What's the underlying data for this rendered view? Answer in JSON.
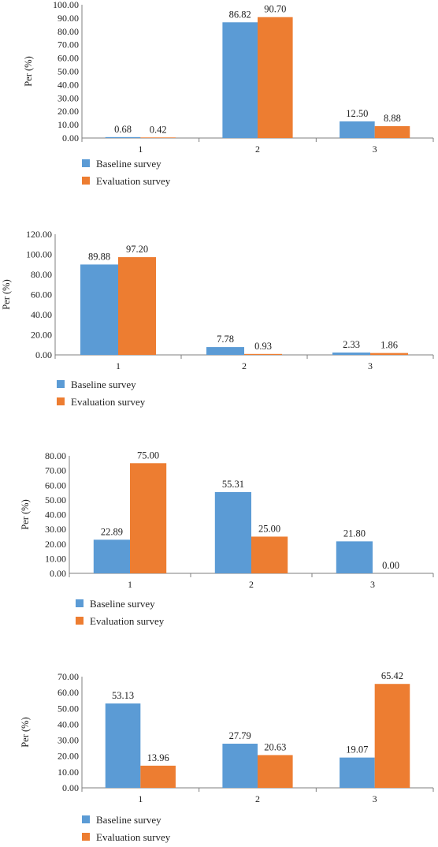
{
  "colors": {
    "baseline": "#5b9bd5",
    "evaluation": "#ed7d31",
    "axis": "#7f7f7f"
  },
  "chart_data": [
    {
      "type": "bar",
      "categories": [
        "1",
        "2",
        "3"
      ],
      "ylabel": "Per (%)",
      "ylim": [
        0,
        100
      ],
      "yticks": [
        "0.00",
        "10.00",
        "20.00",
        "30.00",
        "40.00",
        "50.00",
        "60.00",
        "70.00",
        "80.00",
        "90.00",
        "100.00"
      ],
      "legend_placement": "bottom-left",
      "series": [
        {
          "name": "Baseline survey",
          "values": [
            0.68,
            86.82,
            12.5
          ],
          "labels": [
            "0.68",
            "86.82",
            "12.50"
          ]
        },
        {
          "name": "Evaluation survey",
          "values": [
            0.42,
            90.7,
            8.88
          ],
          "labels": [
            "0.42",
            "90.70",
            "8.88"
          ]
        }
      ]
    },
    {
      "type": "bar",
      "categories": [
        "1",
        "2",
        "3"
      ],
      "ylabel": "Per (%)",
      "ylim": [
        0,
        120
      ],
      "yticks": [
        "0.00",
        "20.00",
        "40.00",
        "60.00",
        "80.00",
        "100.00",
        "120.00"
      ],
      "legend_placement": "bottom-left",
      "series": [
        {
          "name": "Baseline survey",
          "values": [
            89.88,
            7.78,
            2.33
          ],
          "labels": [
            "89.88",
            "7.78",
            "2.33"
          ]
        },
        {
          "name": "Evaluation survey",
          "values": [
            97.2,
            0.93,
            1.86
          ],
          "labels": [
            "97.20",
            "0.93",
            "1.86"
          ]
        }
      ]
    },
    {
      "type": "bar",
      "categories": [
        "1",
        "2",
        "3"
      ],
      "ylabel": "Per (%)",
      "ylim": [
        0,
        80
      ],
      "yticks": [
        "0.00",
        "10.00",
        "20.00",
        "30.00",
        "40.00",
        "50.00",
        "60.00",
        "70.00",
        "80.00"
      ],
      "legend_placement": "bottom-left",
      "series": [
        {
          "name": "Baseline survey",
          "values": [
            22.89,
            55.31,
            21.8
          ],
          "labels": [
            "22.89",
            "55.31",
            "21.80"
          ]
        },
        {
          "name": "Evaluation survey",
          "values": [
            75.0,
            25.0,
            0.0
          ],
          "labels": [
            "75.00",
            "25.00",
            "0.00"
          ]
        }
      ]
    },
    {
      "type": "bar",
      "categories": [
        "1",
        "2",
        "3"
      ],
      "ylabel": "Per (%)",
      "ylim": [
        0,
        70
      ],
      "yticks": [
        "0.00",
        "10.00",
        "20.00",
        "30.00",
        "40.00",
        "50.00",
        "60.00",
        "70.00"
      ],
      "legend_placement": "bottom-left",
      "series": [
        {
          "name": "Baseline survey",
          "values": [
            53.13,
            27.79,
            19.07
          ],
          "labels": [
            "53.13",
            "27.79",
            "19.07"
          ]
        },
        {
          "name": "Evaluation survey",
          "values": [
            13.96,
            20.63,
            65.42
          ],
          "labels": [
            "13.96",
            "20.63",
            "65.42"
          ]
        }
      ]
    }
  ]
}
